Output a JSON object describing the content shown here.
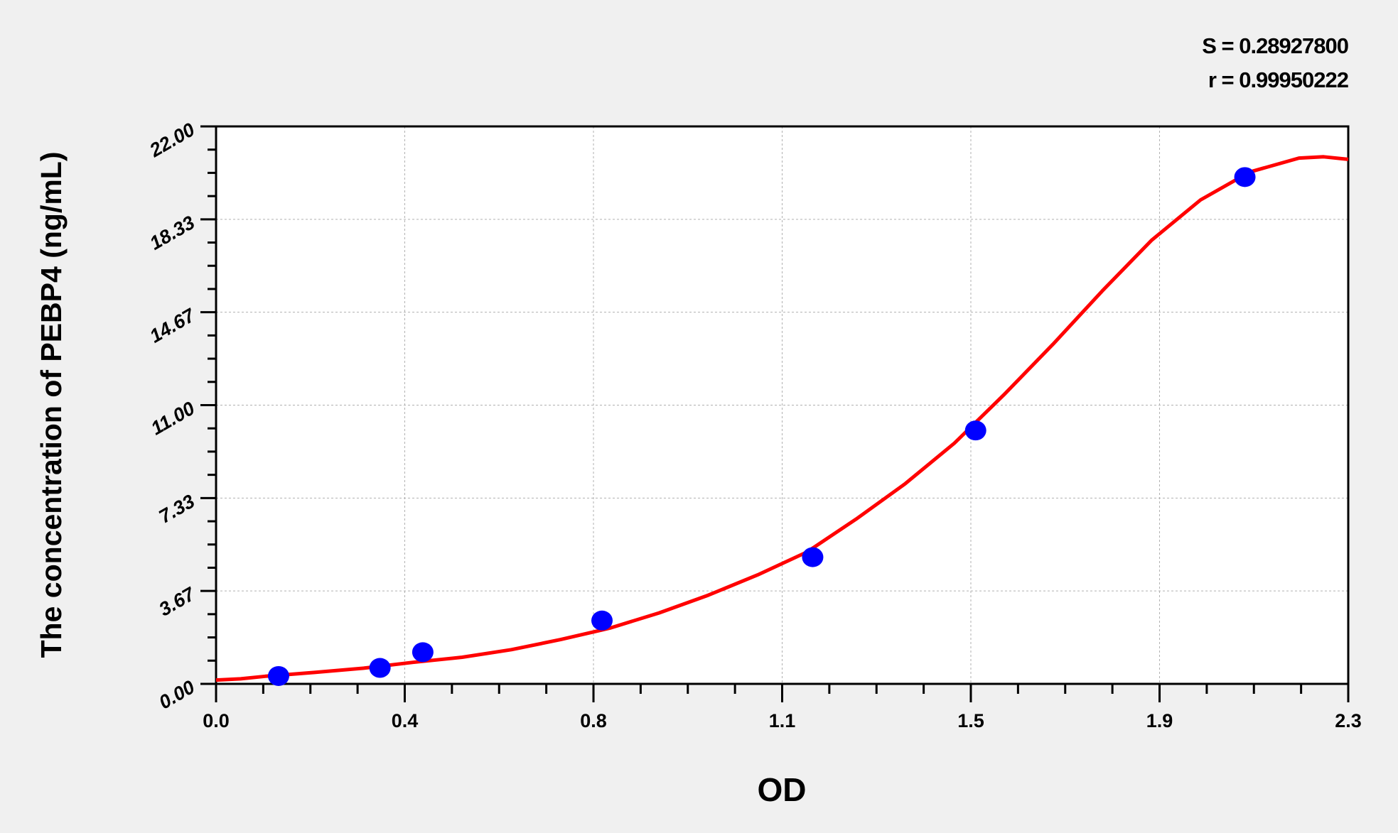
{
  "stats": {
    "s_label": "S = 0.28927800",
    "r_label": "r = 0.99950222"
  },
  "chart_data": {
    "type": "scatter",
    "title": "",
    "xlabel": "OD",
    "ylabel": "The concentration of PEBP4 (ng/mL)",
    "xlim": [
      0,
      2.3
    ],
    "ylim": [
      0,
      22
    ],
    "x_ticks": [
      {
        "value": 0.0,
        "label": "0.0"
      },
      {
        "value": 0.3833,
        "label": "0.4"
      },
      {
        "value": 0.7667,
        "label": "0.8"
      },
      {
        "value": 1.15,
        "label": "1.1"
      },
      {
        "value": 1.5333,
        "label": "1.5"
      },
      {
        "value": 1.9167,
        "label": "1.9"
      },
      {
        "value": 2.3,
        "label": "2.3"
      }
    ],
    "y_ticks": [
      {
        "value": 0,
        "label": "0.00"
      },
      {
        "value": 3.667,
        "label": "3.67"
      },
      {
        "value": 7.333,
        "label": "7.33"
      },
      {
        "value": 11,
        "label": "11.00"
      },
      {
        "value": 14.667,
        "label": "14.67"
      },
      {
        "value": 18.333,
        "label": "18.33"
      },
      {
        "value": 22,
        "label": "22.00"
      }
    ],
    "grid": true,
    "points": {
      "color": "#0000ff",
      "x": [
        0.127,
        0.333,
        0.42,
        0.784,
        1.212,
        1.543,
        2.09
      ],
      "y": [
        0.31,
        0.63,
        1.25,
        2.5,
        5,
        10,
        20
      ]
    },
    "fit_curve": {
      "color": "#ff0000",
      "x": [
        0,
        0.05,
        0.1,
        0.2,
        0.3,
        0.4,
        0.5,
        0.6,
        0.7,
        0.8,
        0.9,
        1.0,
        1.1,
        1.2,
        1.3,
        1.4,
        1.5,
        1.6,
        1.7,
        1.8,
        1.9,
        2.0,
        2.1,
        2.2,
        2.25,
        2.3
      ],
      "y": [
        0.15,
        0.2,
        0.3,
        0.45,
        0.62,
        0.85,
        1.05,
        1.35,
        1.75,
        2.2,
        2.8,
        3.5,
        4.3,
        5.2,
        6.5,
        7.9,
        9.5,
        11.4,
        13.4,
        15.5,
        17.5,
        19.1,
        20.2,
        20.75,
        20.8,
        20.7
      ]
    }
  }
}
